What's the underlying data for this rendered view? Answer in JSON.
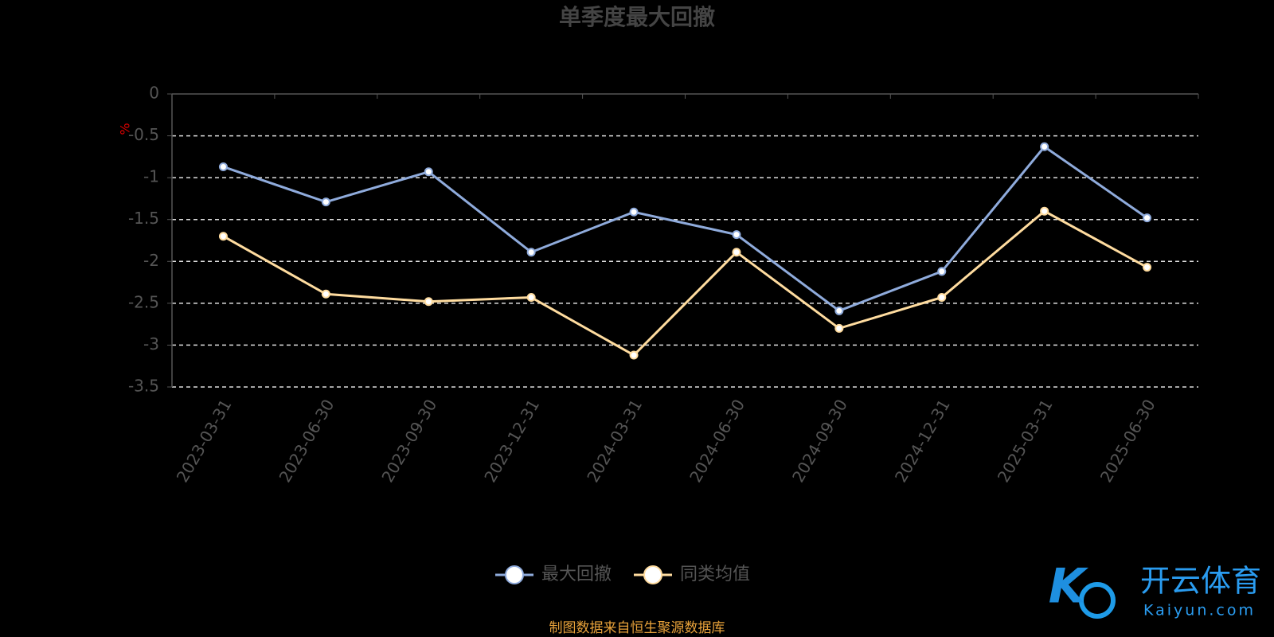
{
  "chart_data": {
    "type": "line",
    "title": "单季度最大回撤",
    "y_unit": "%",
    "categories": [
      "2023-03-31",
      "2023-06-30",
      "2023-09-30",
      "2023-12-31",
      "2024-03-31",
      "2024-06-30",
      "2024-09-30",
      "2024-12-31",
      "2025-03-31",
      "2025-06-30"
    ],
    "series": [
      {
        "name": "最大回撤",
        "color": "#8fabdc",
        "values": [
          -0.87,
          -1.29,
          -0.93,
          -1.89,
          -1.41,
          -1.68,
          -2.59,
          -2.12,
          -0.63,
          -1.48
        ]
      },
      {
        "name": "同类均值",
        "color": "#ffdc9f",
        "values": [
          -1.7,
          -2.39,
          -2.48,
          -2.43,
          -3.12,
          -1.89,
          -2.8,
          -2.43,
          -1.4,
          -2.07
        ]
      }
    ],
    "ylim": [
      -3.5,
      0
    ],
    "yticks": [
      0,
      -0.5,
      -1,
      -1.5,
      -2,
      -2.5,
      -3,
      -3.5
    ],
    "grid": true,
    "source": "制图数据来自恒生聚源数据库"
  },
  "watermark": {
    "brand": "开云体育",
    "url": "Kaiyun.com"
  }
}
